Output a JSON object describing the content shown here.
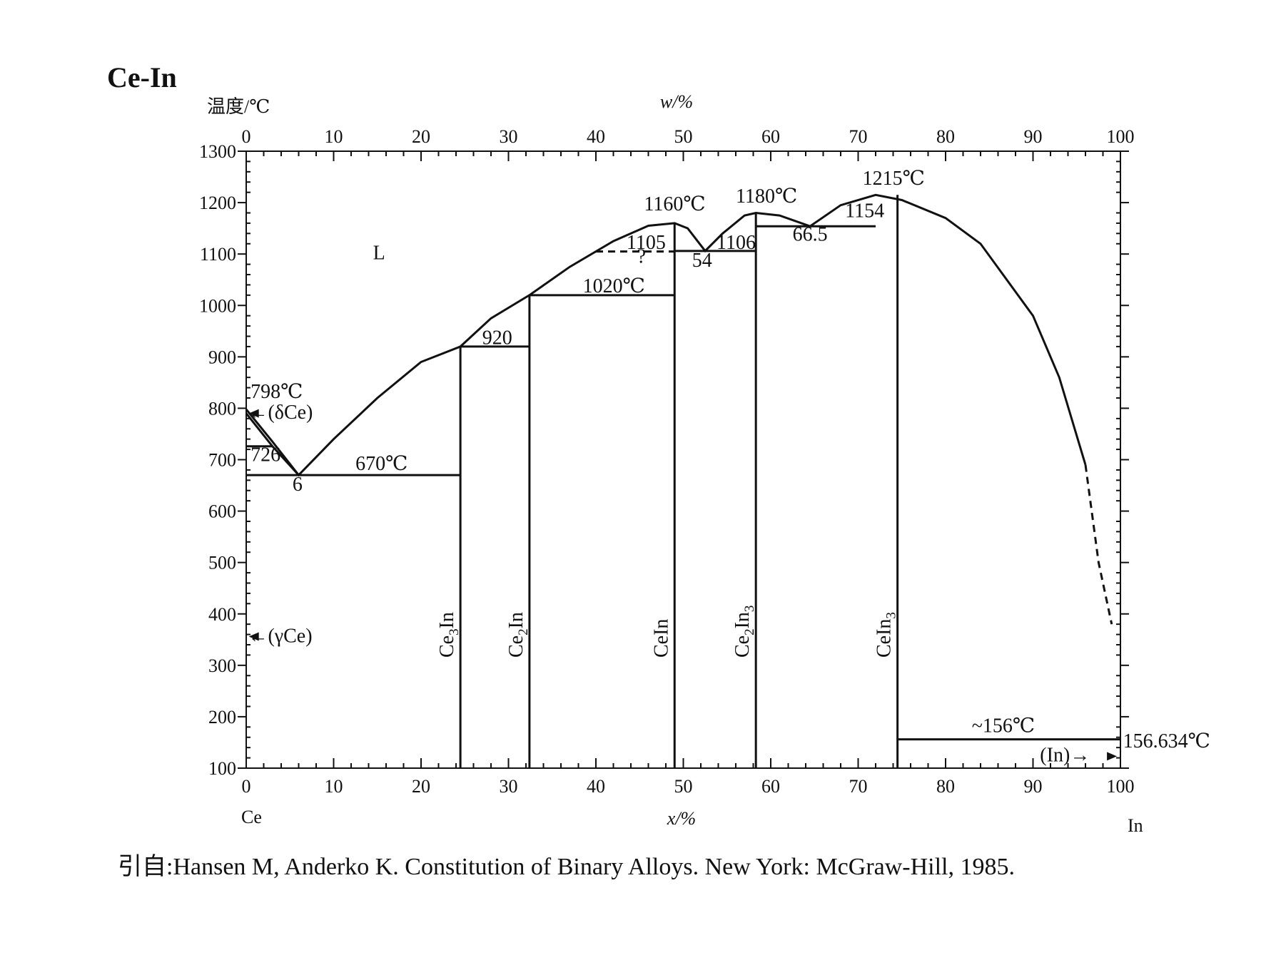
{
  "chart_data": {
    "type": "phase-diagram",
    "title": "Ce-In",
    "ylabel": "温度/℃",
    "xlabel_top": "w/%",
    "xlabel_bottom": "x/%",
    "element_left": "Ce",
    "element_right": "In",
    "ylim": [
      100,
      1300
    ],
    "xlim": [
      0,
      100
    ],
    "y_ticks": [
      "100",
      "200",
      "300",
      "400",
      "500",
      "600",
      "700",
      "800",
      "900",
      "1000",
      "1100",
      "1200",
      "1300"
    ],
    "x_ticks_bottom": [
      "0",
      "10",
      "20",
      "30",
      "40",
      "50",
      "60",
      "70",
      "80",
      "90",
      "100"
    ],
    "x_ticks_top": [
      "0",
      "10",
      "20",
      "30",
      "40",
      "50",
      "60",
      "70",
      "80",
      "90",
      "100"
    ],
    "liquidus": [
      [
        0,
        798
      ],
      [
        3,
        735
      ],
      [
        6,
        670
      ],
      [
        10,
        740
      ],
      [
        15,
        820
      ],
      [
        20,
        890
      ],
      [
        24.5,
        920
      ],
      [
        28,
        975
      ],
      [
        32.4,
        1020
      ],
      [
        37,
        1075
      ],
      [
        42,
        1125
      ],
      [
        46,
        1155
      ],
      [
        49,
        1160
      ],
      [
        50.5,
        1150
      ],
      [
        52.5,
        1106
      ],
      [
        54.5,
        1140
      ],
      [
        57,
        1175
      ],
      [
        58.3,
        1180
      ],
      [
        61,
        1175
      ],
      [
        64.5,
        1154
      ],
      [
        68,
        1195
      ],
      [
        72,
        1215
      ],
      [
        75,
        1205
      ],
      [
        80,
        1170
      ],
      [
        84,
        1120
      ],
      [
        90,
        980
      ],
      [
        93,
        860
      ],
      [
        96,
        690
      ]
    ],
    "liquidus_dashed": [
      [
        96,
        690
      ],
      [
        97.5,
        500
      ],
      [
        99,
        380
      ]
    ],
    "delta_solvus": [
      [
        0,
        790
      ],
      [
        3,
        726
      ],
      [
        6,
        670
      ]
    ],
    "isotherms": [
      {
        "x1": 0,
        "x2": 24.5,
        "t": 670
      },
      {
        "x1": 0,
        "x2": 3,
        "t": 726
      },
      {
        "x1": 24.5,
        "x2": 32.4,
        "t": 920
      },
      {
        "x1": 32.4,
        "x2": 49,
        "t": 1020
      },
      {
        "x1": 49,
        "x2": 58.3,
        "t": 1106
      },
      {
        "x1": 58.3,
        "x2": 72,
        "t": 1154
      },
      {
        "x1": 74.5,
        "x2": 100,
        "t": 156
      }
    ],
    "dashed_isotherm": {
      "x1": 40,
      "x2": 49,
      "t": 1105
    },
    "compounds": [
      {
        "name": "Ce3In",
        "x": 24.5,
        "t_top": 920
      },
      {
        "name": "Ce2In",
        "x": 32.4,
        "t_top": 1020
      },
      {
        "name": "CeIn",
        "x": 49,
        "t_top": 1160
      },
      {
        "name": "Ce2In3",
        "x": 58.3,
        "t_top": 1180
      },
      {
        "name": "CeIn3",
        "x": 74.5,
        "t_top": 1215
      }
    ],
    "compound_labels": [
      {
        "base": "Ce",
        "sub": "3",
        "tail": "In",
        "tail_sub": ""
      },
      {
        "base": "Ce",
        "sub": "2",
        "tail": "In",
        "tail_sub": ""
      },
      {
        "base": "CeIn",
        "sub": "",
        "tail": "",
        "tail_sub": ""
      },
      {
        "base": "Ce",
        "sub": "2",
        "tail": "In",
        "tail_sub": "3"
      },
      {
        "base": "CeIn",
        "sub": "",
        "tail": "",
        "tail_sub": "3"
      }
    ],
    "annotations": [
      {
        "text": "L",
        "x": 14.5,
        "t": 1090
      },
      {
        "text": "798℃",
        "x": 0.5,
        "t": 820
      },
      {
        "text": "←(δCe)",
        "x": 0.2,
        "t": 780
      },
      {
        "text": "726",
        "x": 0.5,
        "t": 697
      },
      {
        "text": "670℃",
        "x": 12.5,
        "t": 680
      },
      {
        "text": "6",
        "x": 5.3,
        "t": 640
      },
      {
        "text": "920",
        "x": 27,
        "t": 925
      },
      {
        "text": "1020℃",
        "x": 38.5,
        "t": 1025
      },
      {
        "text": "1105",
        "x": 43.5,
        "t": 1110
      },
      {
        "text": "?",
        "x": 44.7,
        "t": 1083
      },
      {
        "text": "1160℃",
        "x": 45.5,
        "t": 1185
      },
      {
        "text": "54",
        "x": 51,
        "t": 1075
      },
      {
        "text": "1106",
        "x": 53.8,
        "t": 1110
      },
      {
        "text": "1180℃",
        "x": 56,
        "t": 1200
      },
      {
        "text": "66.5",
        "x": 62.5,
        "t": 1126
      },
      {
        "text": "1154",
        "x": 68.5,
        "t": 1172
      },
      {
        "text": "1215℃",
        "x": 70.5,
        "t": 1235
      },
      {
        "text": "←(γCe)",
        "x": 0.2,
        "t": 345
      },
      {
        "text": "~156℃",
        "x": 83,
        "t": 170
      },
      {
        "text": "156.634℃",
        "x": 100.3,
        "t": 140
      },
      {
        "text": "(In)→",
        "x": 90.8,
        "t": 113
      }
    ]
  },
  "citation": "引自:Hansen M, Anderko K. Constitution of Binary Alloys. New York: McGraw-Hill, 1985."
}
